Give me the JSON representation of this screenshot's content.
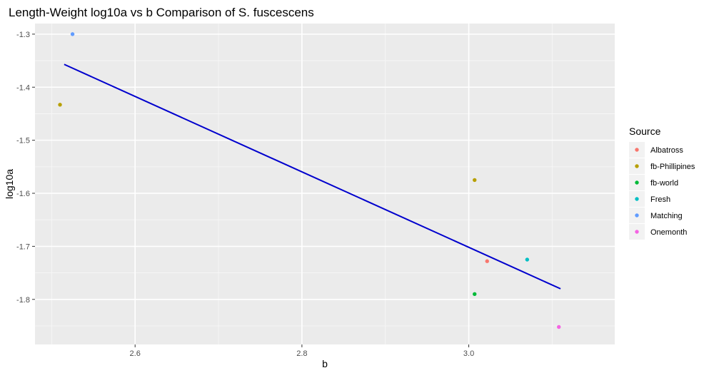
{
  "chart_data": {
    "type": "scatter",
    "title": "Length-Weight log10a vs b Comparison of S. fuscescens",
    "xlabel": "b",
    "ylabel": "log10a",
    "xlim": [
      2.48,
      3.175
    ],
    "ylim": [
      -1.885,
      -1.28
    ],
    "x_ticks": [
      2.6,
      2.8,
      3.0
    ],
    "x_tick_labels": [
      "2.6",
      "2.8",
      "3.0"
    ],
    "y_ticks": [
      -1.3,
      -1.4,
      -1.5,
      -1.6,
      -1.7,
      -1.8
    ],
    "y_tick_labels": [
      "-1.3",
      "-1.4",
      "-1.5",
      "-1.6",
      "-1.7",
      "-1.8"
    ],
    "grid": true,
    "legend": {
      "title": "Source",
      "position": "right"
    },
    "series": [
      {
        "name": "Albatross",
        "color": "#F8766D",
        "points": [
          {
            "x": 3.022,
            "y": -1.728
          }
        ]
      },
      {
        "name": "fb-Phillipines",
        "color": "#B79F00",
        "points": [
          {
            "x": 2.51,
            "y": -1.433
          },
          {
            "x": 3.007,
            "y": -1.575
          }
        ]
      },
      {
        "name": "fb-world",
        "color": "#00BA38",
        "points": [
          {
            "x": 3.007,
            "y": -1.79
          }
        ]
      },
      {
        "name": "Fresh",
        "color": "#00BFC4",
        "points": [
          {
            "x": 3.07,
            "y": -1.725
          }
        ]
      },
      {
        "name": "Matching",
        "color": "#619CFF",
        "points": [
          {
            "x": 2.525,
            "y": -1.3
          }
        ]
      },
      {
        "name": "Onemonth",
        "color": "#F564E3",
        "points": [
          {
            "x": 3.108,
            "y": -1.852
          }
        ]
      }
    ],
    "fit_line": {
      "color": "#0000CD",
      "x": [
        2.515,
        3.11
      ],
      "y": [
        -1.357,
        -1.78
      ]
    }
  }
}
